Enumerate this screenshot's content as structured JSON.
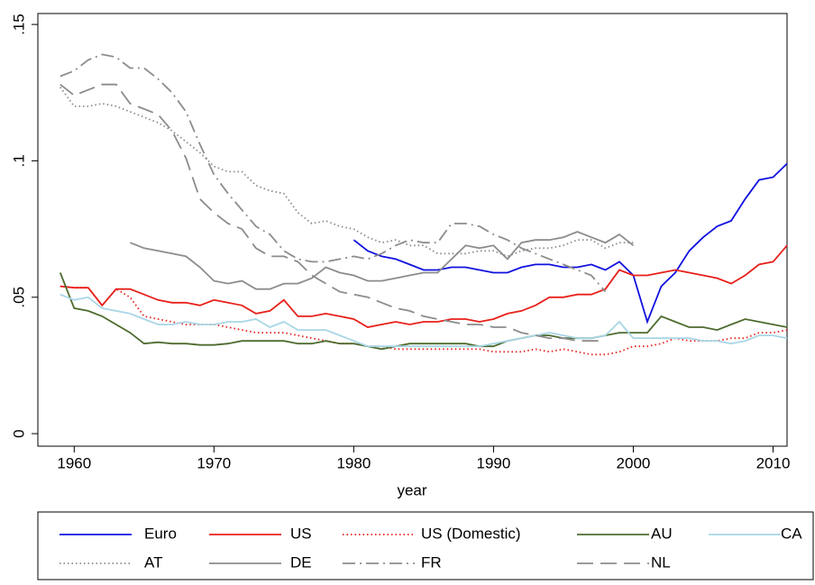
{
  "chart_data": {
    "type": "line",
    "xlabel": "year",
    "x": [
      1959,
      1960,
      1961,
      1962,
      1963,
      1964,
      1965,
      1966,
      1967,
      1968,
      1969,
      1970,
      1971,
      1972,
      1973,
      1974,
      1975,
      1976,
      1977,
      1978,
      1979,
      1980,
      1981,
      1982,
      1983,
      1984,
      1985,
      1986,
      1987,
      1988,
      1989,
      1990,
      1991,
      1992,
      1993,
      1994,
      1995,
      1996,
      1997,
      1998,
      1999,
      2000,
      2001,
      2002,
      2003,
      2004,
      2005,
      2006,
      2007,
      2008,
      2009,
      2010,
      2011
    ],
    "xlim": [
      1957.4,
      2011
    ],
    "xticks": [
      1960,
      1970,
      1980,
      1990,
      2000,
      2010
    ],
    "ylim": [
      -0.0046,
      0.154
    ],
    "yticks": [
      0,
      {
        "value": 0.05,
        "label": ".05"
      },
      {
        "value": 0.1,
        "label": ".1"
      },
      {
        "value": 0.15,
        "label": ".15"
      }
    ],
    "series": [
      {
        "name": "Euro",
        "color": "#1010e0",
        "style": "solid",
        "values": [
          null,
          null,
          null,
          null,
          null,
          null,
          null,
          null,
          null,
          null,
          null,
          null,
          null,
          null,
          null,
          null,
          null,
          null,
          null,
          null,
          null,
          0.071,
          0.067,
          0.065,
          0.064,
          0.062,
          0.06,
          0.06,
          0.061,
          0.061,
          0.06,
          0.059,
          0.059,
          0.061,
          0.062,
          0.062,
          0.061,
          0.061,
          0.062,
          0.06,
          0.063,
          0.058,
          0.041,
          0.054,
          0.059,
          0.067,
          0.072,
          0.076,
          0.078,
          0.086,
          0.093,
          0.094,
          0.099
        ]
      },
      {
        "name": "US",
        "color": "#e8201a",
        "style": "solid",
        "values": [
          0.054,
          0.0535,
          0.0535,
          0.047,
          0.053,
          0.053,
          0.051,
          0.049,
          0.048,
          0.048,
          0.047,
          0.049,
          0.048,
          0.047,
          0.044,
          0.045,
          0.049,
          0.043,
          0.043,
          0.044,
          0.043,
          0.042,
          0.039,
          0.04,
          0.041,
          0.04,
          0.041,
          0.041,
          0.042,
          0.042,
          0.041,
          0.042,
          0.044,
          0.045,
          0.047,
          0.05,
          0.05,
          0.051,
          0.051,
          0.053,
          0.06,
          0.058,
          0.058,
          0.059,
          0.06,
          0.059,
          0.058,
          0.057,
          0.055,
          0.058,
          0.062,
          0.063,
          0.069
        ]
      },
      {
        "name": "US (Domestic)",
        "color": "#e8201a",
        "style": "dotted",
        "values": [
          0.054,
          0.0535,
          0.0535,
          0.047,
          0.053,
          0.05,
          0.043,
          0.042,
          0.041,
          0.04,
          0.04,
          0.04,
          0.039,
          0.038,
          0.037,
          0.037,
          0.037,
          0.036,
          0.035,
          0.034,
          0.033,
          0.033,
          0.032,
          0.032,
          0.031,
          0.031,
          0.031,
          0.031,
          0.031,
          0.031,
          0.031,
          0.03,
          0.03,
          0.03,
          0.031,
          0.03,
          0.031,
          0.03,
          0.029,
          0.029,
          0.03,
          0.032,
          0.032,
          0.033,
          0.035,
          0.034,
          0.034,
          0.034,
          0.035,
          0.035,
          0.037,
          0.037,
          0.038
        ]
      },
      {
        "name": "AU",
        "color": "#4e6b2e",
        "style": "solid",
        "values": [
          0.059,
          0.046,
          0.045,
          0.043,
          0.04,
          0.037,
          0.033,
          0.0335,
          0.033,
          0.033,
          0.0325,
          0.0325,
          0.033,
          0.034,
          0.034,
          0.034,
          0.034,
          0.033,
          0.033,
          0.034,
          0.033,
          0.033,
          0.032,
          0.031,
          0.032,
          0.033,
          0.033,
          0.033,
          0.033,
          0.033,
          0.032,
          0.032,
          0.034,
          0.035,
          0.036,
          0.036,
          0.035,
          0.035,
          0.035,
          0.036,
          0.037,
          0.037,
          0.037,
          0.043,
          0.041,
          0.039,
          0.039,
          0.038,
          0.04,
          0.042,
          0.041,
          0.04,
          0.039
        ]
      },
      {
        "name": "CA",
        "color": "#a8d6e6",
        "style": "solid",
        "values": [
          0.051,
          0.049,
          0.05,
          0.046,
          0.045,
          0.044,
          0.042,
          0.04,
          0.04,
          0.041,
          0.04,
          0.04,
          0.041,
          0.041,
          0.042,
          0.039,
          0.041,
          0.038,
          0.038,
          0.038,
          0.036,
          0.034,
          0.032,
          0.032,
          0.032,
          0.032,
          0.032,
          0.032,
          0.032,
          0.032,
          0.032,
          0.033,
          0.034,
          0.035,
          0.036,
          0.037,
          0.036,
          0.035,
          0.035,
          0.036,
          0.041,
          0.035,
          0.035,
          0.035,
          0.035,
          0.035,
          0.034,
          0.034,
          0.033,
          0.034,
          0.036,
          0.036,
          0.035
        ]
      },
      {
        "name": "AT",
        "color": "#8c8c8c",
        "style": "dotted",
        "values": [
          0.127,
          0.12,
          0.12,
          0.121,
          0.12,
          0.118,
          0.116,
          0.114,
          0.111,
          0.107,
          0.103,
          0.098,
          0.096,
          0.096,
          0.091,
          0.089,
          0.088,
          0.081,
          0.077,
          0.078,
          0.076,
          0.075,
          0.072,
          0.07,
          0.071,
          0.069,
          0.069,
          0.066,
          0.066,
          0.066,
          0.067,
          0.067,
          0.065,
          0.067,
          0.068,
          0.068,
          0.069,
          0.071,
          0.071,
          0.068,
          0.07,
          0.07,
          null,
          null,
          null,
          null,
          null,
          null,
          null,
          null,
          null,
          null,
          null
        ]
      },
      {
        "name": "DE",
        "color": "#8c8c8c",
        "style": "solid",
        "values": [
          null,
          null,
          null,
          null,
          null,
          0.07,
          0.068,
          0.067,
          0.066,
          0.065,
          0.061,
          0.056,
          0.055,
          0.056,
          0.053,
          0.053,
          0.055,
          0.055,
          0.057,
          0.061,
          0.059,
          0.058,
          0.056,
          0.056,
          0.057,
          0.058,
          0.059,
          0.059,
          0.064,
          0.069,
          0.068,
          0.069,
          0.064,
          0.07,
          0.071,
          0.071,
          0.072,
          0.074,
          0.072,
          0.07,
          0.073,
          0.069,
          null,
          null,
          null,
          null,
          null,
          null,
          null,
          null,
          null,
          null,
          null
        ]
      },
      {
        "name": "FR",
        "color": "#8c8c8c",
        "style": "dashdot",
        "values": [
          0.131,
          0.133,
          0.137,
          0.139,
          0.138,
          0.134,
          0.134,
          0.13,
          0.125,
          0.118,
          0.106,
          0.095,
          0.088,
          0.082,
          0.076,
          0.073,
          0.067,
          0.064,
          0.063,
          0.063,
          0.064,
          0.065,
          0.064,
          0.066,
          0.069,
          0.071,
          0.07,
          0.07,
          0.077,
          0.077,
          0.076,
          0.073,
          0.071,
          0.068,
          0.066,
          0.064,
          0.062,
          0.06,
          0.058,
          0.052,
          null,
          null,
          null,
          null,
          null,
          null,
          null,
          null,
          null,
          null,
          null,
          null,
          null
        ]
      },
      {
        "name": "NL",
        "color": "#8c8c8c",
        "style": "longdash",
        "values": [
          0.128,
          0.124,
          0.126,
          0.128,
          0.128,
          0.121,
          0.119,
          0.117,
          0.111,
          0.101,
          0.086,
          0.081,
          0.077,
          0.075,
          0.068,
          0.065,
          0.065,
          0.063,
          0.058,
          0.055,
          0.052,
          0.051,
          0.05,
          0.048,
          0.046,
          0.045,
          0.043,
          0.042,
          0.041,
          0.04,
          0.04,
          0.039,
          0.039,
          0.037,
          0.036,
          0.035,
          0.035,
          0.034,
          0.034,
          0.034,
          null,
          null,
          null,
          null,
          null,
          null,
          null,
          null,
          null,
          null,
          null,
          null,
          null
        ]
      }
    ]
  }
}
